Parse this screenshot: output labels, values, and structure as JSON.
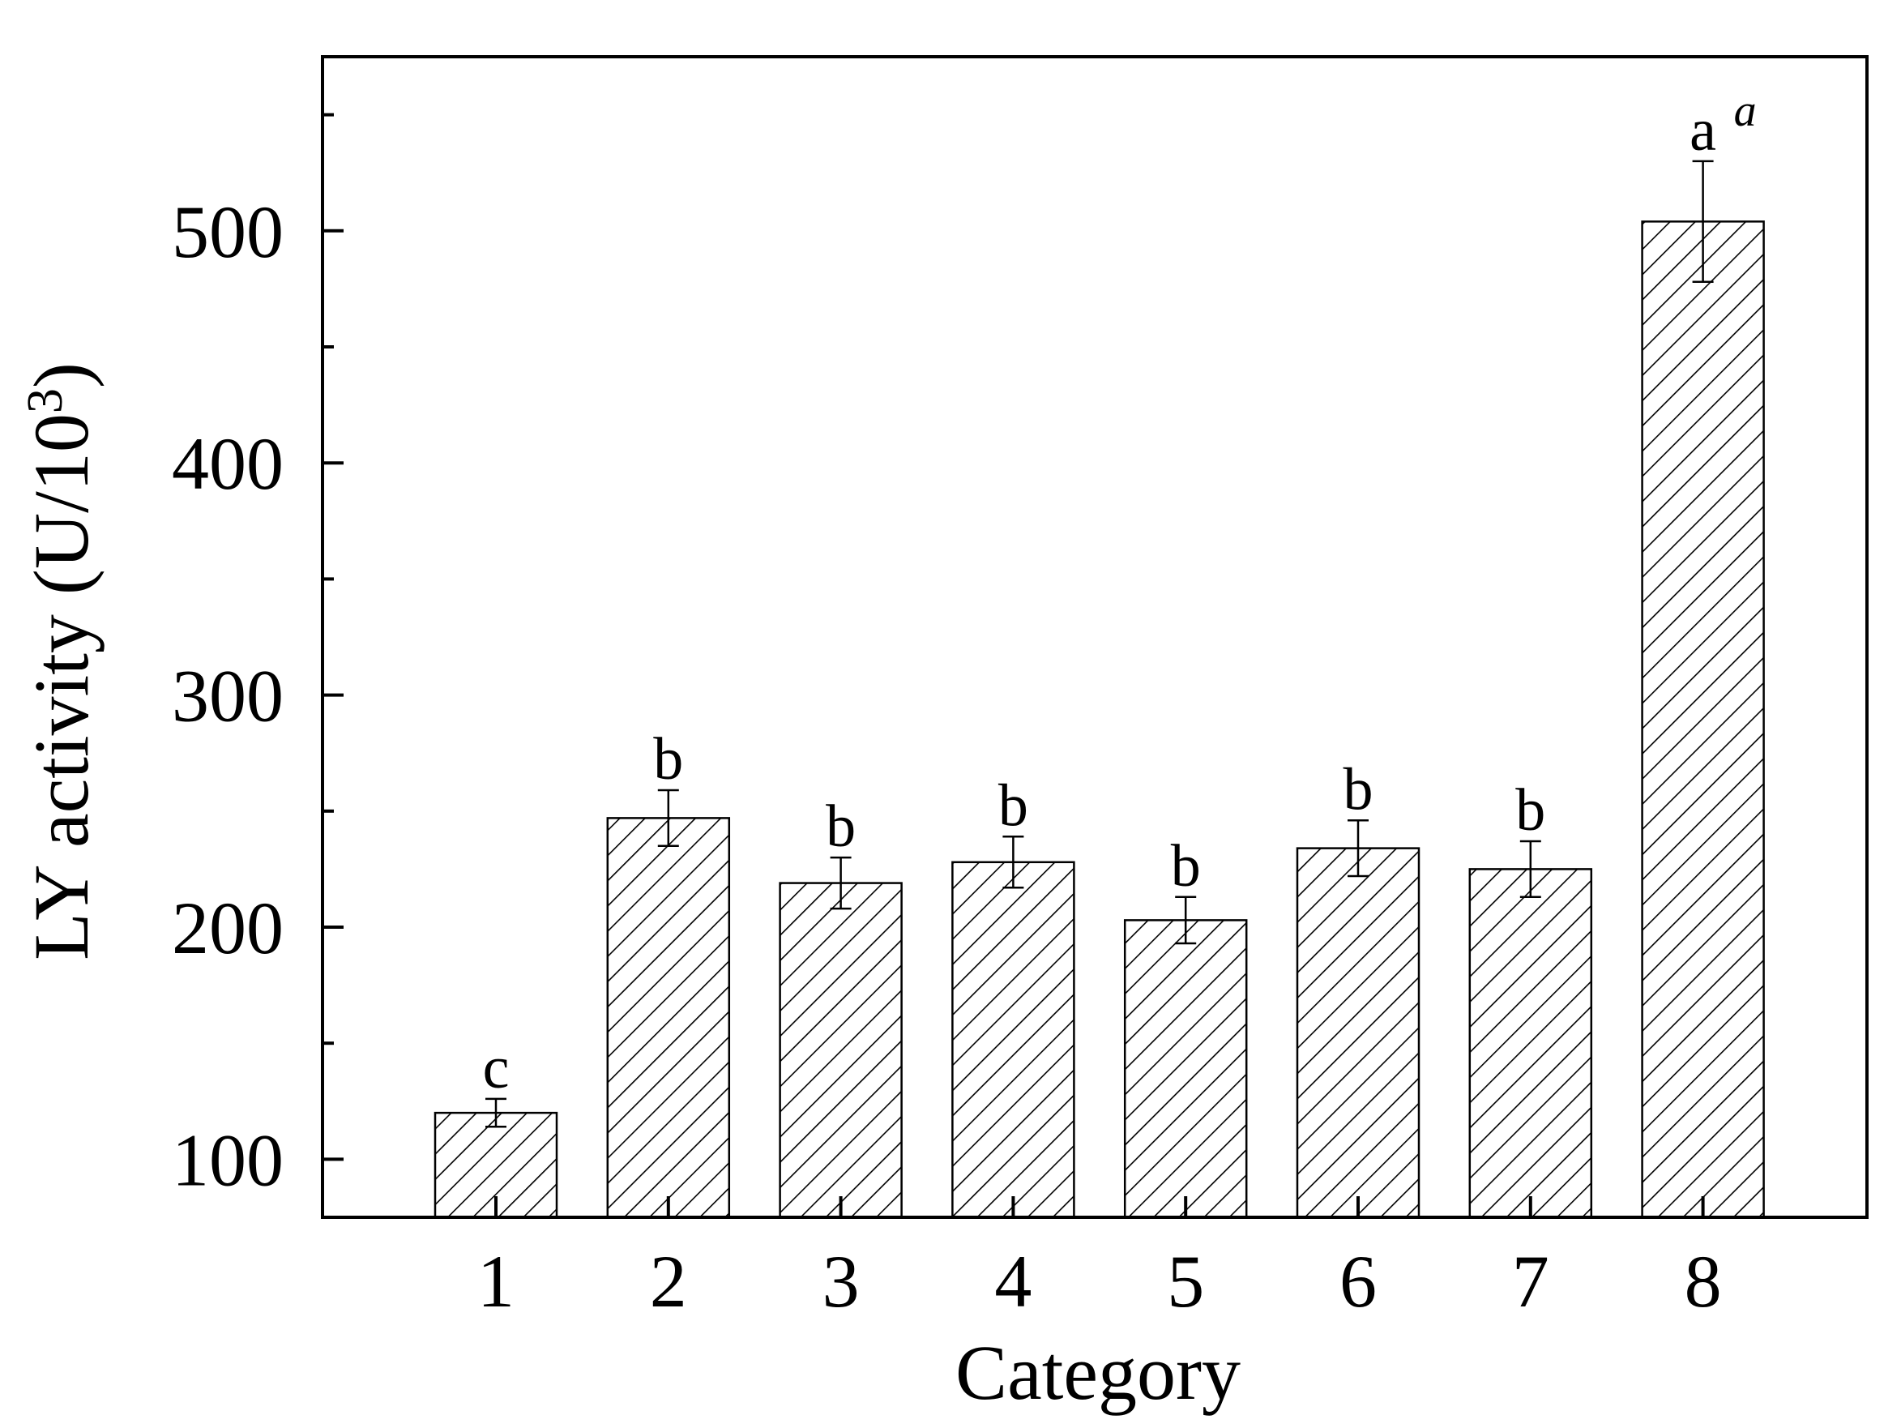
{
  "chart_data": {
    "type": "bar",
    "title": "",
    "xlabel": "Category",
    "ylabel": "LY activity (U/10",
    "ylabel_superscript": "3",
    "ylabel_close": ")",
    "ylim": [
      75,
      575
    ],
    "y_major_ticks": [
      100,
      200,
      300,
      400,
      500
    ],
    "y_minor_ticks": [
      150,
      250,
      350,
      450,
      550
    ],
    "categories": [
      "1",
      "2",
      "3",
      "4",
      "5",
      "6",
      "7",
      "8"
    ],
    "values": [
      120,
      247,
      219,
      228,
      203,
      234,
      225,
      504
    ],
    "errors": [
      6,
      12,
      11,
      11,
      10,
      12,
      12,
      26
    ],
    "significance_letters": [
      "c",
      "b",
      "b",
      "b",
      "b",
      "b",
      "b",
      "a"
    ],
    "annotation": "a",
    "bar_fill": "hatched",
    "bar_color": "#000000",
    "grid": false,
    "legend": "none"
  }
}
